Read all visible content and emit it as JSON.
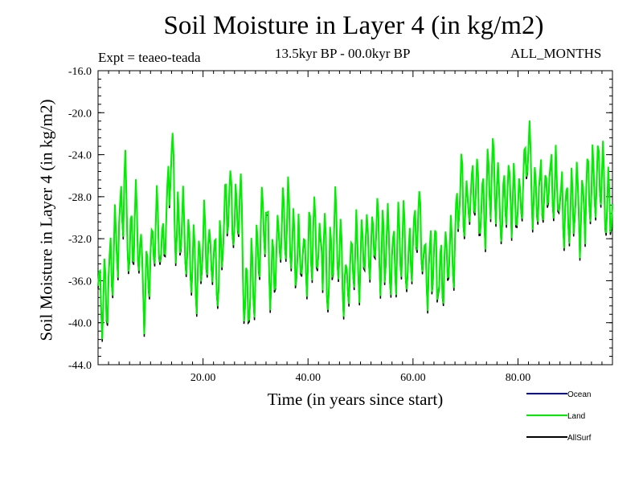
{
  "header": {
    "title": "Soil Moisture in Layer 4 (in kg/m2)",
    "experiment": "Expt = teaeo-teada",
    "period": "13.5kyr BP - 00.0kyr BP",
    "months": "ALL_MONTHS"
  },
  "chart_data": {
    "type": "line",
    "title": "Soil Moisture in Layer 4 (in kg/m2)",
    "xlabel": "Time (in years since start)",
    "ylabel": "Soil Moisture in Layer 4 (in kg/m2)",
    "xlim": [
      0,
      98
    ],
    "ylim": [
      -44,
      -16
    ],
    "x_ticks": [
      20,
      40,
      60,
      80
    ],
    "x_tick_labels": [
      "20.00",
      "40.00",
      "60.00",
      "80.00"
    ],
    "y_ticks": [
      -16,
      -20,
      -24,
      -28,
      -32,
      -36,
      -40,
      -44
    ],
    "y_tick_labels": [
      "-16.0",
      "-20.0",
      "-24.0",
      "-28.0",
      "-32.0",
      "-36.0",
      "-40.0",
      "-44.0"
    ],
    "x_step": 0.2,
    "legend_position": "bottom-right, below plot",
    "series": [
      {
        "name": "Ocean",
        "color": "#0000cc",
        "values": []
      },
      {
        "name": "Land",
        "color": "#00ee00",
        "values": []
      },
      {
        "name": "AllSurf",
        "color": "#000000",
        "values": []
      }
    ],
    "anchor_points": [
      [
        0,
        -37
      ],
      [
        1,
        -38
      ],
      [
        2,
        -36
      ],
      [
        3,
        -33
      ],
      [
        4,
        -31
      ],
      [
        5,
        -26
      ],
      [
        6,
        -34
      ],
      [
        7,
        -30
      ],
      [
        8,
        -33
      ],
      [
        9,
        -37
      ],
      [
        10,
        -33
      ],
      [
        11,
        -30
      ],
      [
        12,
        -34
      ],
      [
        13,
        -30
      ],
      [
        14,
        -24
      ],
      [
        15,
        -32
      ],
      [
        16,
        -30
      ],
      [
        17,
        -33
      ],
      [
        18,
        -34
      ],
      [
        19,
        -35
      ],
      [
        20,
        -33
      ],
      [
        21,
        -32
      ],
      [
        22,
        -34
      ],
      [
        23,
        -36
      ],
      [
        24,
        -30
      ],
      [
        25,
        -27
      ],
      [
        26,
        -31
      ],
      [
        27,
        -28
      ],
      [
        28,
        -38
      ],
      [
        29,
        -37
      ],
      [
        30,
        -35
      ],
      [
        31,
        -31
      ],
      [
        32,
        -30
      ],
      [
        33,
        -36
      ],
      [
        34,
        -33
      ],
      [
        35,
        -31
      ],
      [
        36,
        -30
      ],
      [
        37,
        -32
      ],
      [
        38,
        -34
      ],
      [
        39,
        -33
      ],
      [
        40,
        -34
      ],
      [
        41,
        -31
      ],
      [
        42,
        -33
      ],
      [
        43,
        -32
      ],
      [
        44,
        -36
      ],
      [
        45,
        -31
      ],
      [
        46,
        -33
      ],
      [
        47,
        -36
      ],
      [
        48,
        -35
      ],
      [
        49,
        -33
      ],
      [
        50,
        -34
      ],
      [
        51,
        -32
      ],
      [
        52,
        -33
      ],
      [
        53,
        -31
      ],
      [
        54,
        -34
      ],
      [
        55,
        -32
      ],
      [
        56,
        -34
      ],
      [
        57,
        -33
      ],
      [
        58,
        -32
      ],
      [
        59,
        -35
      ],
      [
        60,
        -32
      ],
      [
        61,
        -30
      ],
      [
        62,
        -34
      ],
      [
        63,
        -35
      ],
      [
        64,
        -33
      ],
      [
        65,
        -36
      ],
      [
        66,
        -34
      ],
      [
        67,
        -33
      ],
      [
        68,
        -32
      ],
      [
        69,
        -27
      ],
      [
        70,
        -29
      ],
      [
        71,
        -28
      ],
      [
        72,
        -27
      ],
      [
        73,
        -30
      ],
      [
        74,
        -28
      ],
      [
        75,
        -26
      ],
      [
        76,
        -27
      ],
      [
        77,
        -30
      ],
      [
        78,
        -27
      ],
      [
        79,
        -28
      ],
      [
        80,
        -29
      ],
      [
        81,
        -26
      ],
      [
        82,
        -23
      ],
      [
        83,
        -28
      ],
      [
        84,
        -27
      ],
      [
        85,
        -28
      ],
      [
        86,
        -26
      ],
      [
        87,
        -27
      ],
      [
        88,
        -28
      ],
      [
        89,
        -29
      ],
      [
        90,
        -29
      ],
      [
        91,
        -28
      ],
      [
        92,
        -30
      ],
      [
        93,
        -27
      ],
      [
        94,
        -28
      ],
      [
        95,
        -26
      ],
      [
        96,
        -26
      ],
      [
        97,
        -29
      ],
      [
        98,
        -29
      ]
    ],
    "wiggle_amplitude": 3.2,
    "allsurf_offset": -0.25
  }
}
